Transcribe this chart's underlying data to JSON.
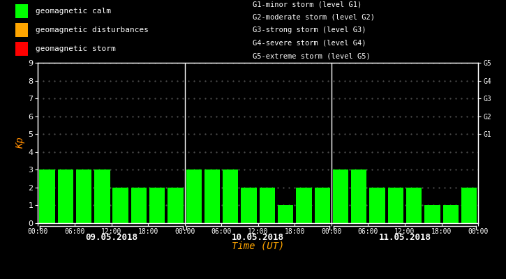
{
  "bg_color": "#000000",
  "bar_color": "#00ff00",
  "bar_color_orange": "#ffa500",
  "bar_color_red": "#ff0000",
  "axis_color": "#ffffff",
  "kp_label_color": "#ff8c00",
  "xlabel_color": "#ffa500",
  "days": [
    "09.05.2018",
    "10.05.2018",
    "11.05.2018"
  ],
  "kp_values": [
    3,
    3,
    3,
    3,
    2,
    2,
    2,
    2,
    3,
    3,
    3,
    2,
    2,
    1,
    2,
    2,
    3,
    3,
    2,
    2,
    2,
    1,
    1,
    2
  ],
  "ylim": [
    0,
    9
  ],
  "yticks": [
    0,
    1,
    2,
    3,
    4,
    5,
    6,
    7,
    8,
    9
  ],
  "g_labels": [
    "G5",
    "G4",
    "G3",
    "G2",
    "G1"
  ],
  "g_levels": [
    9,
    8,
    7,
    6,
    5
  ],
  "legend_items": [
    {
      "label": "geomagnetic calm",
      "color": "#00ff00"
    },
    {
      "label": "geomagnetic disturbances",
      "color": "#ffa500"
    },
    {
      "label": "geomagnetic storm",
      "color": "#ff0000"
    }
  ],
  "legend_right_lines": [
    "G1-minor storm (level G1)",
    "G2-moderate storm (level G2)",
    "G3-strong storm (level G3)",
    "G4-severe storm (level G4)",
    "G5-extreme storm (level G5)"
  ],
  "xlabel": "Time (UT)",
  "ylabel": "Kp",
  "dot_color": "#555555",
  "bar_width": 0.85,
  "font_family": "monospace"
}
